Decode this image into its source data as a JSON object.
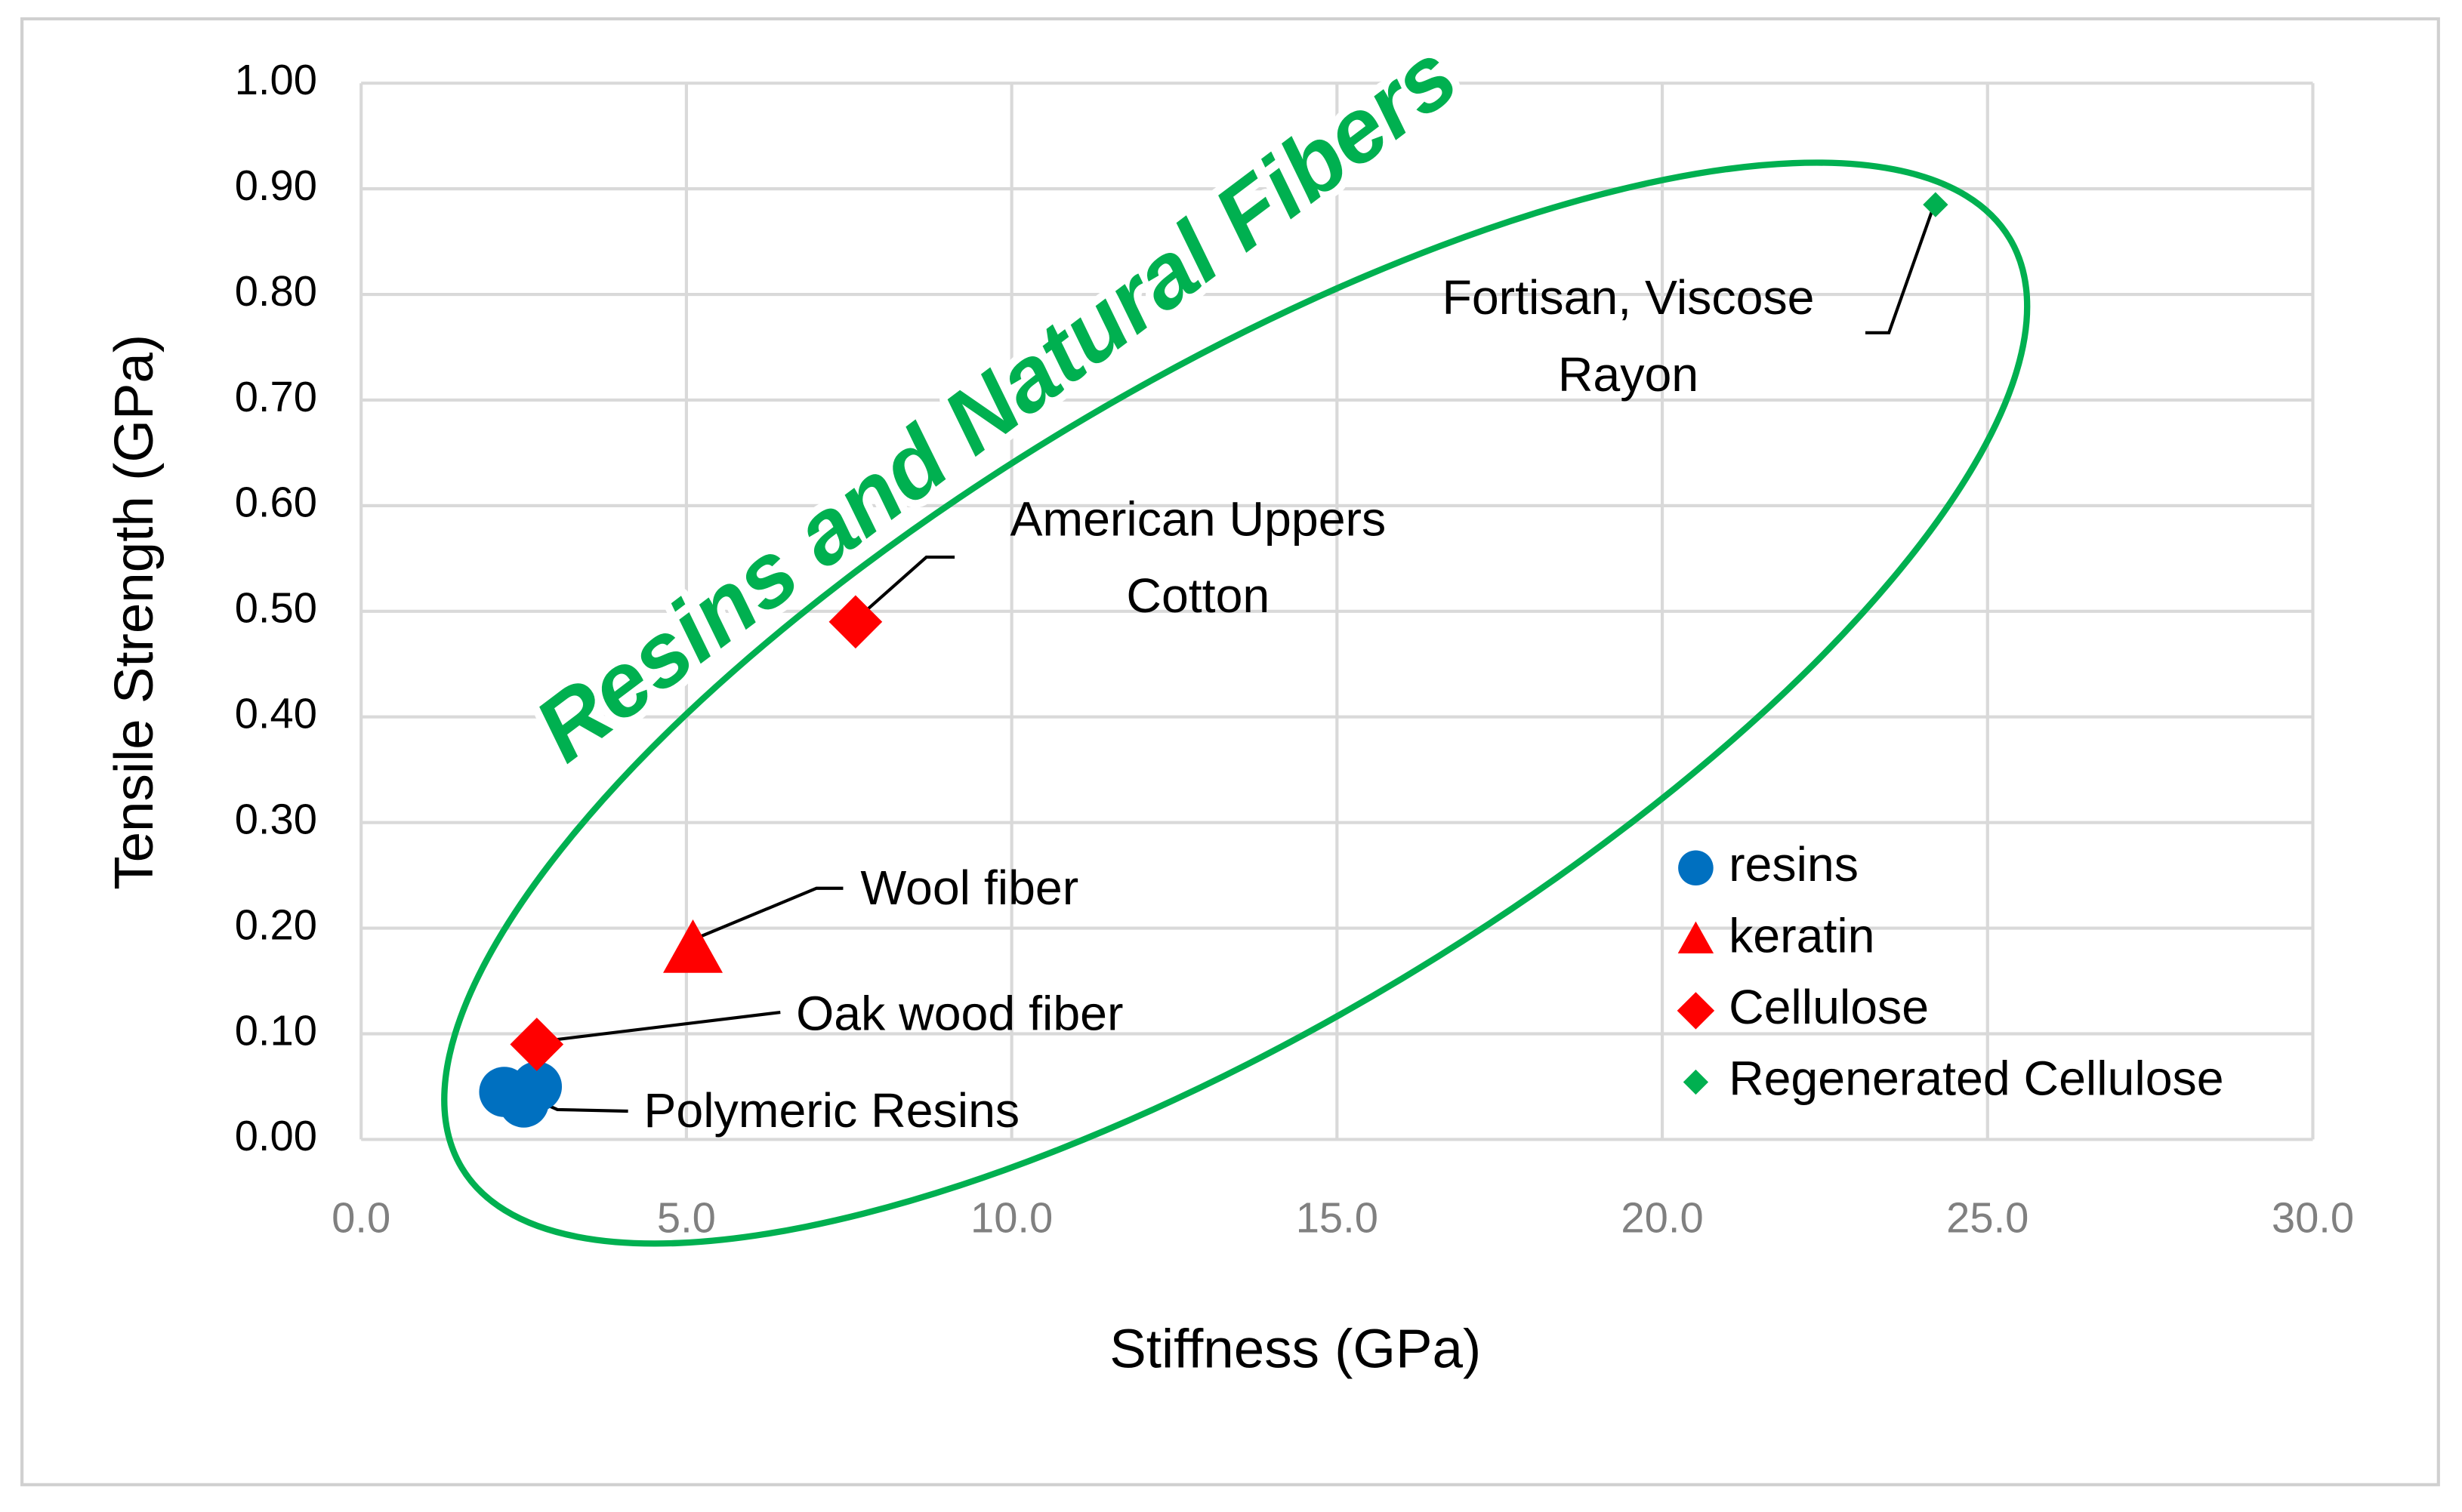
{
  "chart_data": {
    "type": "scatter",
    "xlabel": "Stiffness (GPa)",
    "ylabel": "Tensile Strength (GPa)",
    "xlim": [
      0,
      30
    ],
    "ylim": [
      0,
      1
    ],
    "xticks": [
      {
        "value": 0,
        "label": "0.0"
      },
      {
        "value": 5,
        "label": "5.0"
      },
      {
        "value": 10,
        "label": "10.0"
      },
      {
        "value": 15,
        "label": "15.0"
      },
      {
        "value": 20,
        "label": "20.0"
      },
      {
        "value": 25,
        "label": "25.0"
      },
      {
        "value": 30,
        "label": "30.0"
      }
    ],
    "yticks": [
      {
        "value": 0,
        "label": "0.00"
      },
      {
        "value": 0.1,
        "label": "0.10"
      },
      {
        "value": 0.2,
        "label": "0.20"
      },
      {
        "value": 0.3,
        "label": "0.30"
      },
      {
        "value": 0.4,
        "label": "0.40"
      },
      {
        "value": 0.5,
        "label": "0.50"
      },
      {
        "value": 0.6,
        "label": "0.60"
      },
      {
        "value": 0.7,
        "label": "0.70"
      },
      {
        "value": 0.8,
        "label": "0.80"
      },
      {
        "value": 0.9,
        "label": "0.90"
      },
      {
        "value": 1,
        "label": "1.00"
      }
    ],
    "grid": true,
    "legend": "lower-right",
    "series": [
      {
        "name": "resins",
        "color": "#0070c0",
        "marker": "circle",
        "x": [
          2.2,
          2.5,
          2.7
        ],
        "values": [
          0.045,
          0.035,
          0.05
        ]
      },
      {
        "name": "keratin",
        "color": "#ff0000",
        "marker": "triangle",
        "x": [
          5.1
        ],
        "values": [
          0.18
        ]
      },
      {
        "name": "Cellulose",
        "color": "#ff0000",
        "marker": "diamond",
        "x": [
          2.7,
          7.6
        ],
        "values": [
          0.09,
          0.49
        ]
      },
      {
        "name": "Regenerated Cellulose",
        "color": "#00b050",
        "marker": "small-diamond",
        "x": [
          24.2
        ],
        "values": [
          0.885
        ]
      }
    ],
    "annotations": [
      {
        "text": [
          "Fortisan, Viscose",
          "Rayon"
        ]
      },
      {
        "text": [
          "American Uppers",
          "Cotton"
        ]
      },
      {
        "text": [
          "Wool fiber"
        ]
      },
      {
        "text": [
          "Oak wood fiber"
        ]
      },
      {
        "text": [
          "Polymeric Resins"
        ]
      }
    ],
    "region_label": "Resins and Natural Fibers"
  }
}
